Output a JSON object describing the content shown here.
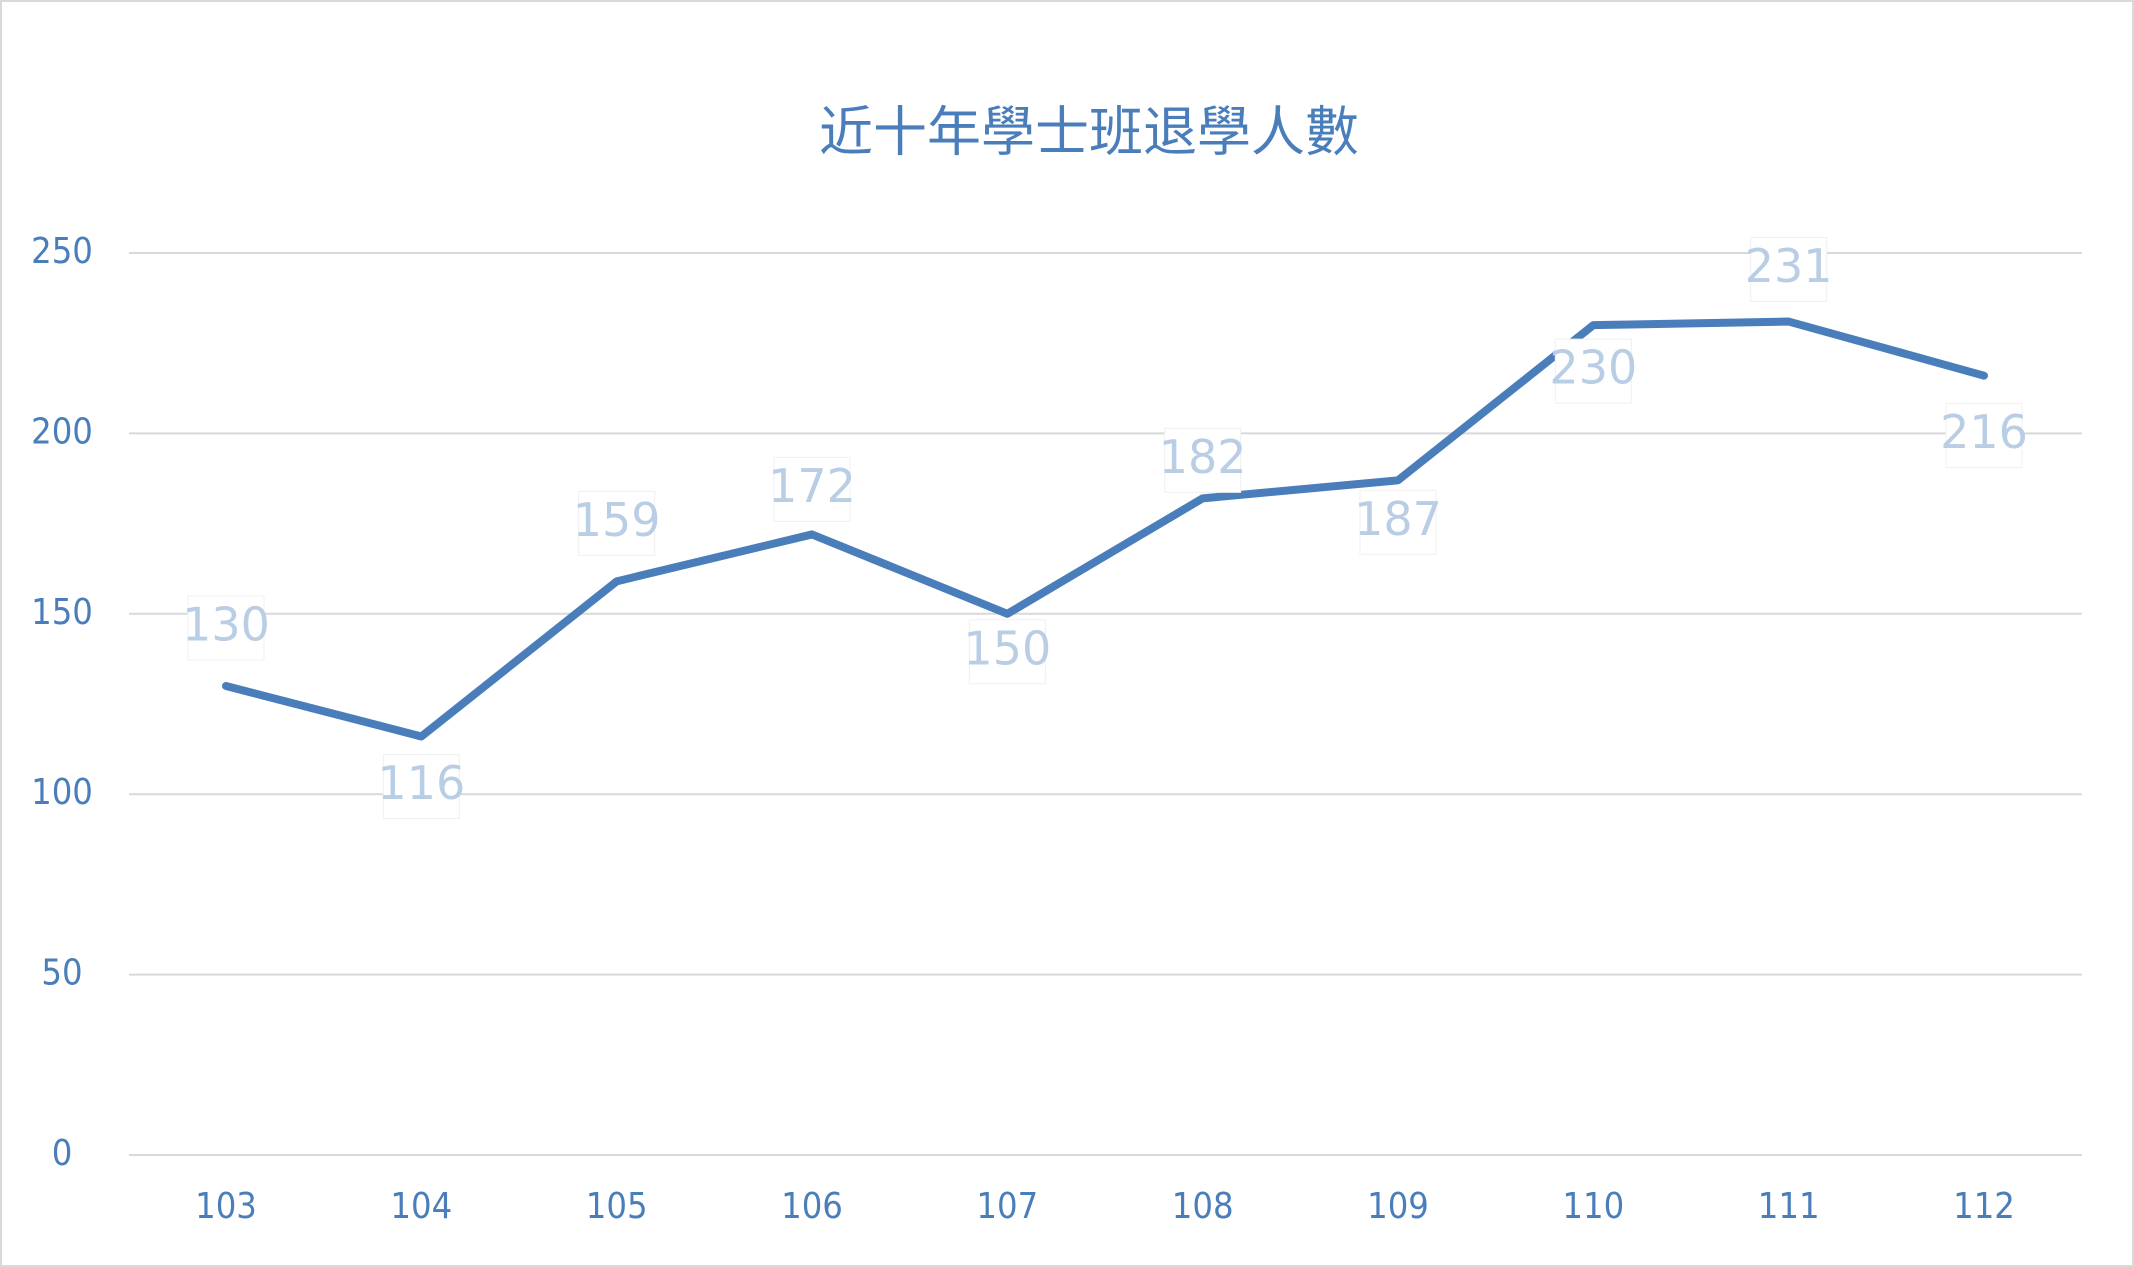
{
  "chart_data": {
    "type": "line",
    "title": "近十年學士班退學人數",
    "categories": [
      "103",
      "104",
      "105",
      "106",
      "107",
      "108",
      "109",
      "110",
      "111",
      "112"
    ],
    "values": [
      130,
      116,
      159,
      172,
      150,
      182,
      187,
      230,
      231,
      216
    ],
    "color": "#4a7ebb",
    "ylim": [
      0,
      250
    ],
    "yticks": [
      0,
      50,
      100,
      150,
      200,
      250
    ],
    "grid": true
  }
}
